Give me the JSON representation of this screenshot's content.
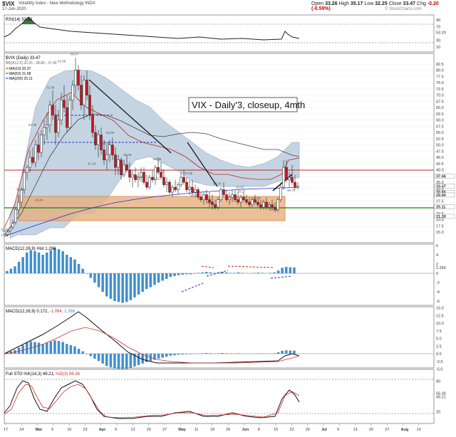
{
  "header": {
    "symbol": "$VIX",
    "full_name": "Volatility Index - New Methodology  INDX",
    "date": "17-Jun-2020",
    "open_label": "Open",
    "open": "33.26",
    "high_label": "High",
    "high": "35.17",
    "low_label": "Low",
    "low": "32.25",
    "close_label": "Close",
    "close": "33.47",
    "chg_label": "Chg",
    "chg": "-0.20 (-0.59%)",
    "credit": "© StockCharts.com"
  },
  "rsi_panel": {
    "legend": "RSI(14) 53.20",
    "ticks": [
      "90",
      "70",
      "53.20",
      "30",
      "10"
    ]
  },
  "price_panel": {
    "legend_title": "$VIX (Daily) 33.47",
    "legend_bb": "BB(20,2.0) 32.25 - 28.80 - 37.46",
    "legend_ma10": "MA(10) 30.37",
    "legend_ma50": "MA(50) 31.58",
    "legend_ma200": "MA(200) 25.11",
    "annotation": "VIX - Daily'3, closeup, 4mth",
    "ticks": [
      "82.5",
      "80.0",
      "77.5",
      "75.0",
      "72.5",
      "70.0",
      "67.5",
      "65.0",
      "62.5",
      "60.0",
      "57.5",
      "55.0",
      "52.5",
      "50.0",
      "47.5",
      "45.0",
      "42.5",
      "40.0",
      "37.5",
      "35.0",
      "32.5",
      "30.0",
      "27.5",
      "25.0",
      "22.5",
      "20.0",
      "17.5",
      "15.0"
    ],
    "value_labels": [
      "85.47",
      "82.69",
      "72.00",
      "57.08",
      "53.90",
      "49.48",
      "45.09",
      "43.35",
      "41.43",
      "38.31",
      "37.56",
      "36.09",
      "35.51",
      "33.44",
      "32.02",
      "31.16",
      "30.27",
      "28.59",
      "27.57",
      "26.84",
      "25.81",
      "24.52",
      "23.00",
      "14.38",
      "12.80",
      "15.21",
      "30.75"
    ],
    "right_value_labels": [
      "37.46",
      "33.47",
      "30.95",
      "29.90",
      "25.11",
      "21.30"
    ]
  },
  "macd_hist_panel": {
    "legend": "MACD(12,26,9) Hist 1.266",
    "ticks": [
      "6",
      "4",
      "2",
      "1.266",
      "0",
      "-2",
      "-4",
      "-6"
    ]
  },
  "macd_panel": {
    "legend_main": "MACD(12,26,9) 0.172, ",
    "legend_signal": "-1.094, ",
    "legend_hist": "1.266",
    "ticks": [
      "15.0",
      "12.5",
      "10.0",
      "7.5",
      "5.0",
      "2.5",
      "0.0",
      "-2.5",
      "-5.0"
    ]
  },
  "sto_panel": {
    "legend_main": "Full STO %K(14,3) 49.21, ",
    "legend_d": "%D(3) 56.36",
    "ticks": [
      "80",
      "56.36",
      "49.21",
      "20"
    ]
  },
  "xaxis": {
    "ticks": [
      "17",
      "24",
      "Mar",
      "9",
      "16",
      "23",
      "Apr",
      "6",
      "13",
      "20",
      "27",
      "May",
      "11",
      "18",
      "26",
      "Jun",
      "8",
      "15",
      "22",
      "29",
      "Jul",
      "6",
      "13",
      "20",
      "27",
      "Aug",
      "10"
    ]
  },
  "colors": {
    "candle_up": "#ffffff",
    "candle_down": "#d0101c",
    "bb_band": "#c4d4e2",
    "ma10": "#c72020",
    "ma50": "#444444",
    "ma200": "#2a2ad4",
    "resistance_line": "#cc2222",
    "support_line": "#0a8a0a",
    "zone_fill": "#e8b080",
    "macd_hist": "#3f8fd0",
    "signal_line": "#d03030"
  }
}
